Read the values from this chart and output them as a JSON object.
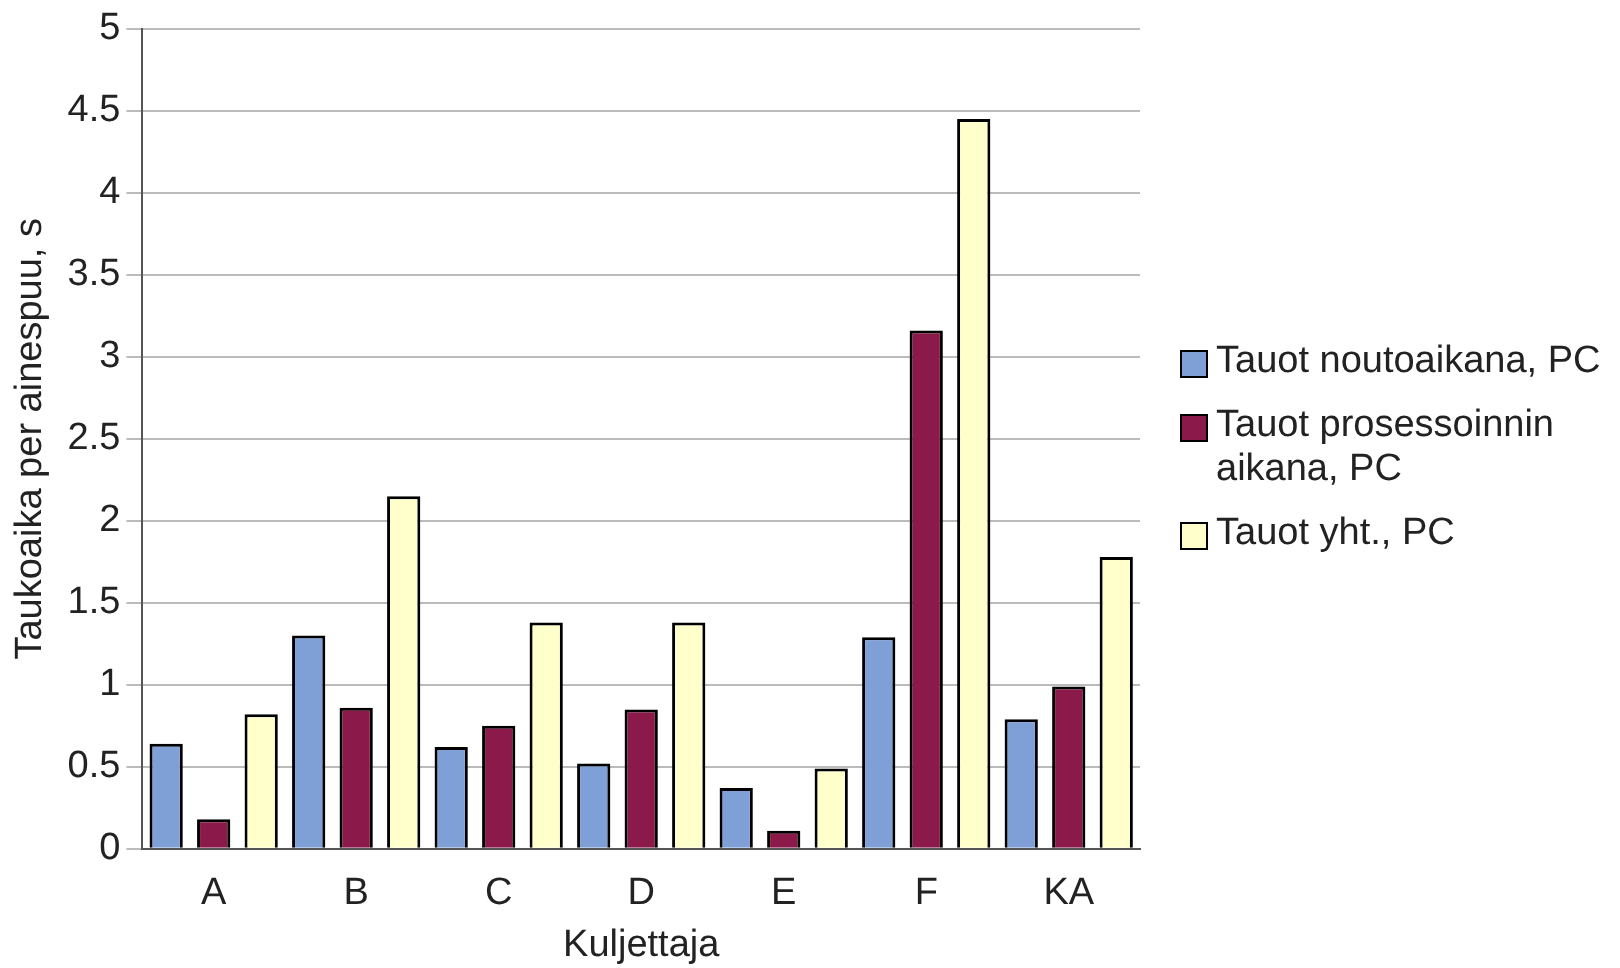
{
  "chart_data": {
    "type": "bar",
    "xlabel": "Kuljettaja",
    "ylabel": "Taukoaika per ainespuu, s",
    "categories": [
      "A",
      "B",
      "C",
      "D",
      "E",
      "F",
      "KA"
    ],
    "series": [
      {
        "name": "Tauot noutoaikana, PC",
        "color": "#7f9fd7",
        "values": [
          0.64,
          1.3,
          0.62,
          0.52,
          0.37,
          1.29,
          0.79
        ]
      },
      {
        "name": "Tauot prosessoinnin aikana, PC",
        "color": "#8b1a4a",
        "values": [
          0.18,
          0.86,
          0.75,
          0.85,
          0.11,
          3.16,
          0.99
        ]
      },
      {
        "name": "Tauot yht., PC",
        "color": "#ffffcc",
        "values": [
          0.82,
          2.15,
          1.38,
          1.38,
          0.49,
          4.45,
          1.78
        ]
      }
    ],
    "ylim": [
      0,
      5
    ],
    "yticks": [
      0,
      0.5,
      1,
      1.5,
      2,
      2.5,
      3,
      3.5,
      4,
      4.5,
      5
    ],
    "grid": "y",
    "legend": "right"
  }
}
